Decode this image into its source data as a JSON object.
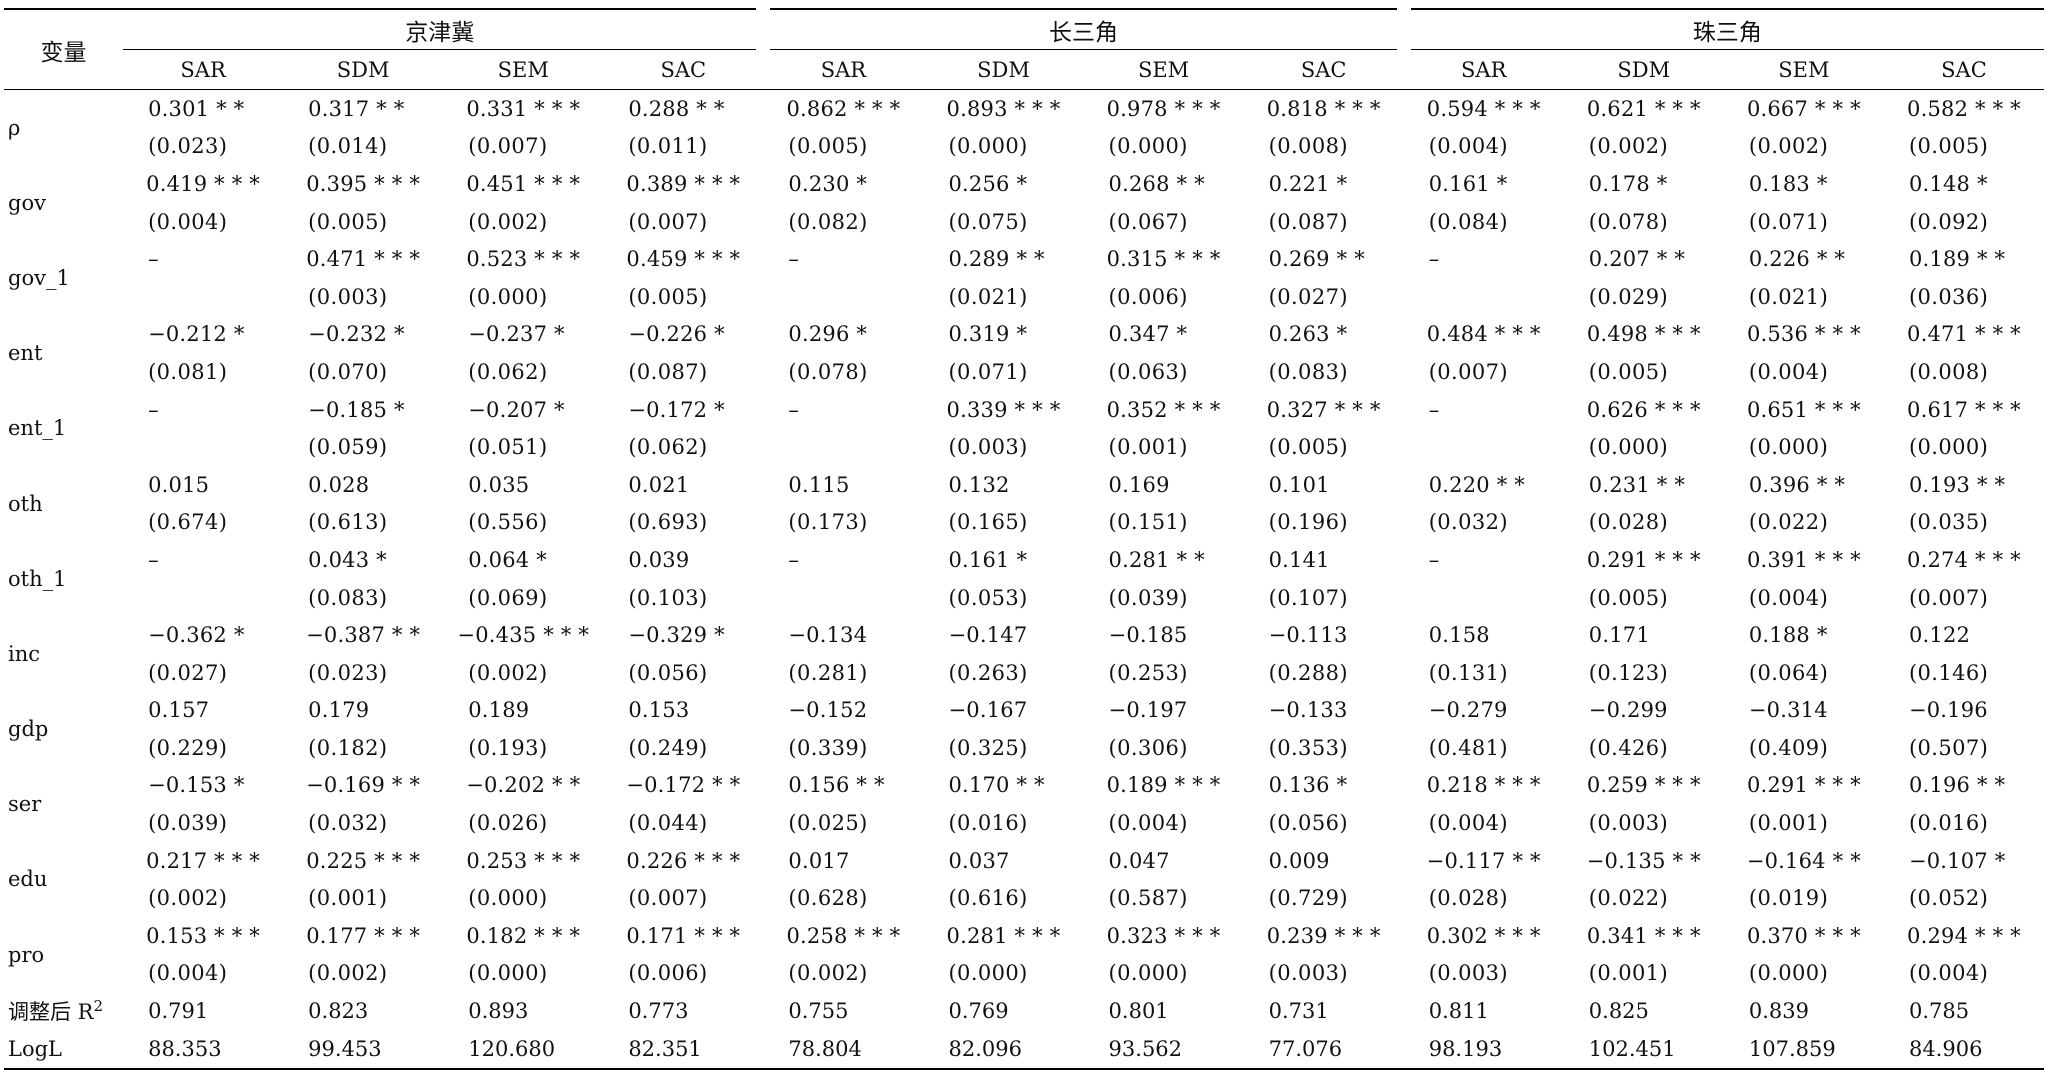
{
  "header": {
    "var_label": "变量",
    "regions": [
      "京津冀",
      "长三角",
      "珠三角"
    ],
    "models": [
      "SAR",
      "SDM",
      "SEM",
      "SAC"
    ]
  },
  "rows": [
    {
      "var": "ρ",
      "coef": [
        "0.301 * *",
        "0.317 * *",
        "0.331 * * *",
        "0.288 * *",
        "0.862 * * *",
        "0.893 * * *",
        "0.978 * * *",
        "0.818 * * *",
        "0.594 * * *",
        "0.621 * * *",
        "0.667 * * *",
        "0.582 * * *"
      ],
      "se": [
        "(0.023)",
        "(0.014)",
        "(0.007)",
        "(0.011)",
        "(0.005)",
        "(0.000)",
        "(0.000)",
        "(0.008)",
        "(0.004)",
        "(0.002)",
        "(0.002)",
        "(0.005)"
      ]
    },
    {
      "var": "gov",
      "coef": [
        "0.419 * * *",
        "0.395 * * *",
        "0.451 * * *",
        "0.389 * * *",
        "0.230 *",
        "0.256 *",
        "0.268 * *",
        "0.221 *",
        "0.161 *",
        "0.178 *",
        "0.183 *",
        "0.148 *"
      ],
      "se": [
        "(0.004)",
        "(0.005)",
        "(0.002)",
        "(0.007)",
        "(0.082)",
        "(0.075)",
        "(0.067)",
        "(0.087)",
        "(0.084)",
        "(0.078)",
        "(0.071)",
        "(0.092)"
      ]
    },
    {
      "var": "gov_1",
      "coef": [
        "–",
        "0.471 * * *",
        "0.523 * * *",
        "0.459 * * *",
        "–",
        "0.289 * *",
        "0.315 * * *",
        "0.269 * *",
        "–",
        "0.207 * *",
        "0.226 * *",
        "0.189 * *"
      ],
      "se": [
        "",
        "(0.003)",
        "(0.000)",
        "(0.005)",
        "",
        "(0.021)",
        "(0.006)",
        "(0.027)",
        "",
        "(0.029)",
        "(0.021)",
        "(0.036)"
      ]
    },
    {
      "var": "ent",
      "coef": [
        "−0.212 *",
        "−0.232 *",
        "−0.237 *",
        "−0.226 *",
        "0.296 *",
        "0.319 *",
        "0.347 *",
        "0.263 *",
        "0.484 * * *",
        "0.498 * * *",
        "0.536 * * *",
        "0.471 * * *"
      ],
      "se": [
        "(0.081)",
        "(0.070)",
        "(0.062)",
        "(0.087)",
        "(0.078)",
        "(0.071)",
        "(0.063)",
        "(0.083)",
        "(0.007)",
        "(0.005)",
        "(0.004)",
        "(0.008)"
      ]
    },
    {
      "var": "ent_1",
      "coef": [
        "–",
        "−0.185 *",
        "−0.207 *",
        "−0.172 *",
        "–",
        "0.339 * * *",
        "0.352 * * *",
        "0.327 * * *",
        "–",
        "0.626 * * *",
        "0.651 * * *",
        "0.617 * * *"
      ],
      "se": [
        "",
        "(0.059)",
        "(0.051)",
        "(0.062)",
        "",
        "(0.003)",
        "(0.001)",
        "(0.005)",
        "",
        "(0.000)",
        "(0.000)",
        "(0.000)"
      ]
    },
    {
      "var": "oth",
      "coef": [
        "0.015",
        "0.028",
        "0.035",
        "0.021",
        "0.115",
        "0.132",
        "0.169",
        "0.101",
        "0.220 * *",
        "0.231 * *",
        "0.396 * *",
        "0.193 * *"
      ],
      "se": [
        "(0.674)",
        "(0.613)",
        "(0.556)",
        "(0.693)",
        "(0.173)",
        "(0.165)",
        "(0.151)",
        "(0.196)",
        "(0.032)",
        "(0.028)",
        "(0.022)",
        "(0.035)"
      ]
    },
    {
      "var": "oth_1",
      "coef": [
        "–",
        "0.043 *",
        "0.064 *",
        "0.039",
        "–",
        "0.161 *",
        "0.281 * *",
        "0.141",
        "–",
        "0.291 * * *",
        "0.391 * * *",
        "0.274 * * *"
      ],
      "se": [
        "",
        "(0.083)",
        "(0.069)",
        "(0.103)",
        "",
        "(0.053)",
        "(0.039)",
        "(0.107)",
        "",
        "(0.005)",
        "(0.004)",
        "(0.007)"
      ]
    },
    {
      "var": "inc",
      "coef": [
        "−0.362 *",
        "−0.387 * *",
        "−0.435 * * *",
        "−0.329 *",
        "−0.134",
        "−0.147",
        "−0.185",
        "−0.113",
        "0.158",
        "0.171",
        "0.188 *",
        "0.122"
      ],
      "se": [
        "(0.027)",
        "(0.023)",
        "(0.002)",
        "(0.056)",
        "(0.281)",
        "(0.263)",
        "(0.253)",
        "(0.288)",
        "(0.131)",
        "(0.123)",
        "(0.064)",
        "(0.146)"
      ]
    },
    {
      "var": "gdp",
      "coef": [
        "0.157",
        "0.179",
        "0.189",
        "0.153",
        "−0.152",
        "−0.167",
        "−0.197",
        "−0.133",
        "−0.279",
        "−0.299",
        "−0.314",
        "−0.196"
      ],
      "se": [
        "(0.229)",
        "(0.182)",
        "(0.193)",
        "(0.249)",
        "(0.339)",
        "(0.325)",
        "(0.306)",
        "(0.353)",
        "(0.481)",
        "(0.426)",
        "(0.409)",
        "(0.507)"
      ]
    },
    {
      "var": "ser",
      "coef": [
        "−0.153 *",
        "−0.169 * *",
        "−0.202 * *",
        "−0.172 * *",
        "0.156 * *",
        "0.170 * *",
        "0.189 * * *",
        "0.136 *",
        "0.218 * * *",
        "0.259 * * *",
        "0.291 * * *",
        "0.196 * *"
      ],
      "se": [
        "(0.039)",
        "(0.032)",
        "(0.026)",
        "(0.044)",
        "(0.025)",
        "(0.016)",
        "(0.004)",
        "(0.056)",
        "(0.004)",
        "(0.003)",
        "(0.001)",
        "(0.016)"
      ]
    },
    {
      "var": "edu",
      "coef": [
        "0.217 * * *",
        "0.225 * * *",
        "0.253 * * *",
        "0.226 * * *",
        "0.017",
        "0.037",
        "0.047",
        "0.009",
        "−0.117 * *",
        "−0.135 * *",
        "−0.164 * *",
        "−0.107 *"
      ],
      "se": [
        "(0.002)",
        "(0.001)",
        "(0.000)",
        "(0.007)",
        "(0.628)",
        "(0.616)",
        "(0.587)",
        "(0.729)",
        "(0.028)",
        "(0.022)",
        "(0.019)",
        "(0.052)"
      ]
    },
    {
      "var": "pro",
      "coef": [
        "0.153 * * *",
        "0.177 * * *",
        "0.182 * * *",
        "0.171 * * *",
        "0.258 * * *",
        "0.281 * * *",
        "0.323 * * *",
        "0.239 * * *",
        "0.302 * * *",
        "0.341 * * *",
        "0.370 * * *",
        "0.294 * * *"
      ],
      "se": [
        "(0.004)",
        "(0.002)",
        "(0.000)",
        "(0.006)",
        "(0.002)",
        "(0.000)",
        "(0.000)",
        "(0.003)",
        "(0.003)",
        "(0.001)",
        "(0.000)",
        "(0.004)"
      ]
    }
  ],
  "stats": [
    {
      "var": "调整后 R",
      "sup": "2",
      "values": [
        "0.791",
        "0.823",
        "0.893",
        "0.773",
        "0.755",
        "0.769",
        "0.801",
        "0.731",
        "0.811",
        "0.825",
        "0.839",
        "0.785"
      ]
    },
    {
      "var": "LogL",
      "sup": "",
      "values": [
        "88.353",
        "99.453",
        "120.680",
        "82.351",
        "78.804",
        "82.096",
        "93.562",
        "77.076",
        "98.193",
        "102.451",
        "107.859",
        "84.906"
      ]
    }
  ]
}
